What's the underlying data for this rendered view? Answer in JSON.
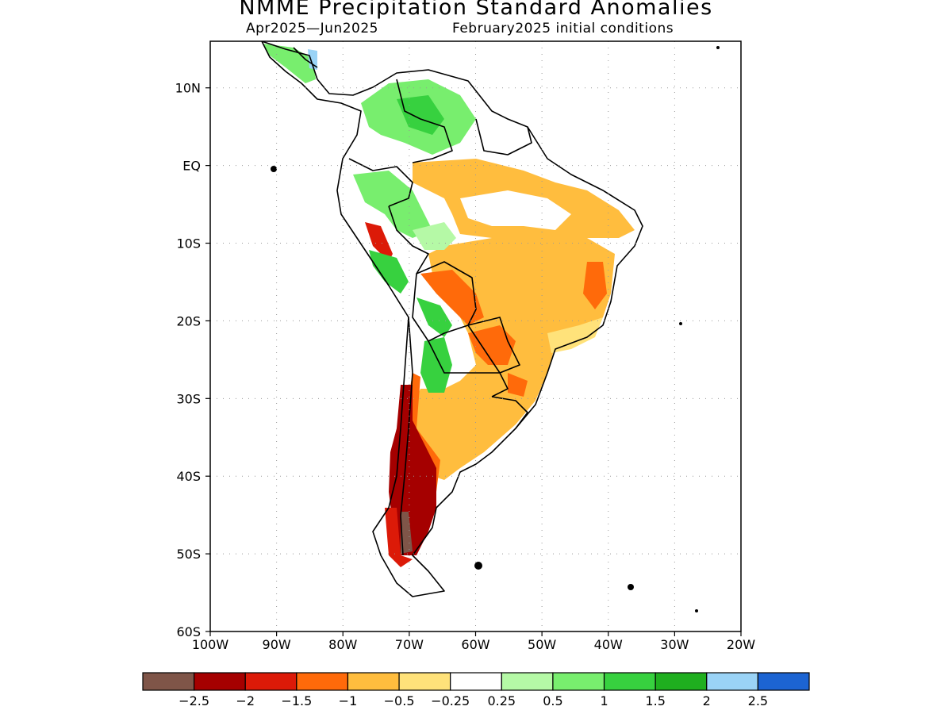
{
  "title": "NMME Precipitation Standard Anomalies",
  "subtitle_left": "Apr2025—Jun2025",
  "subtitle_right": "February2025 initial conditions",
  "lat_ticks": [
    {
      "label": "10N",
      "value": 10
    },
    {
      "label": "EQ",
      "value": 0
    },
    {
      "label": "10S",
      "value": -10
    },
    {
      "label": "20S",
      "value": -20
    },
    {
      "label": "30S",
      "value": -30
    },
    {
      "label": "40S",
      "value": -40
    },
    {
      "label": "50S",
      "value": -50
    },
    {
      "label": "60S",
      "value": -60
    }
  ],
  "lon_ticks": [
    {
      "label": "100W",
      "value": -100
    },
    {
      "label": "90W",
      "value": -90
    },
    {
      "label": "80W",
      "value": -80
    },
    {
      "label": "70W",
      "value": -70
    },
    {
      "label": "60W",
      "value": -60
    },
    {
      "label": "50W",
      "value": -50
    },
    {
      "label": "40W",
      "value": -40
    },
    {
      "label": "30W",
      "value": -30
    },
    {
      "label": "20W",
      "value": -20
    }
  ],
  "map_extent": {
    "lon": [
      -100,
      -20
    ],
    "lat": [
      -60,
      16
    ]
  },
  "colorbar": {
    "colors": [
      "#7f5548",
      "#a50000",
      "#dc1a08",
      "#ff6a0a",
      "#ffbd3e",
      "#ffe27a",
      "#ffffff",
      "#b5f9a6",
      "#78ee6e",
      "#37d13f",
      "#1faf1f",
      "#9ad3f6",
      "#1c64d2"
    ],
    "labels": [
      "−2.5",
      "−2",
      "−1.5",
      "−1",
      "−0.5",
      "−0.25",
      "0.25",
      "0.5",
      "1",
      "1.5",
      "2",
      "2.5"
    ]
  },
  "colors": {
    "outline": "#000000",
    "grid": "#999999"
  }
}
